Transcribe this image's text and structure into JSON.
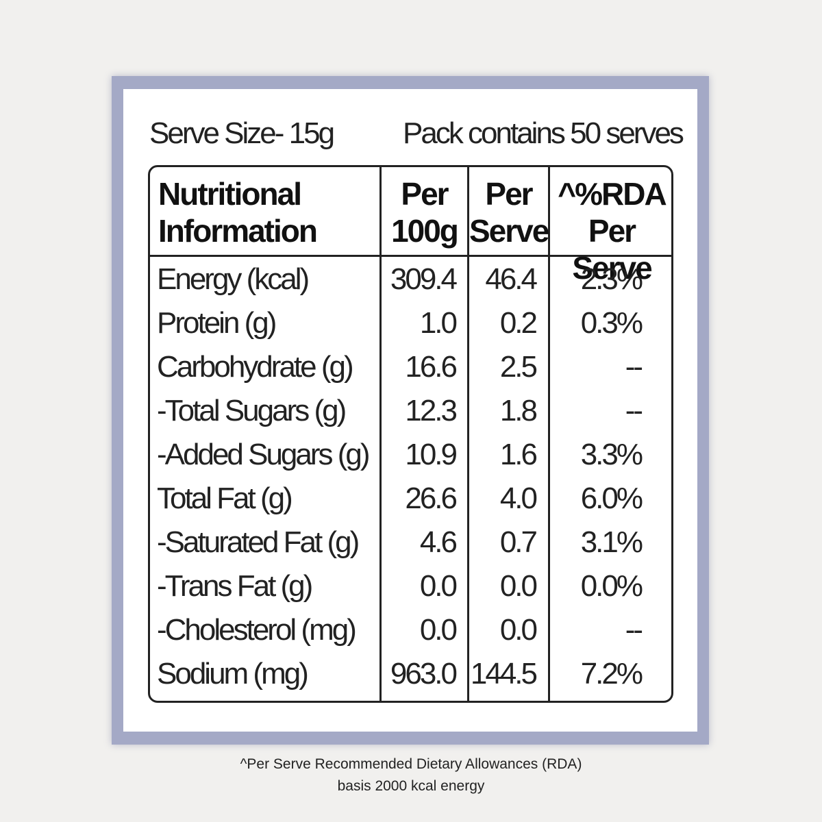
{
  "header": {
    "serve_size": "Serve Size- 15g",
    "pack_contains": "Pack contains 50 serves"
  },
  "table": {
    "columns": {
      "nutrient_line1": "Nutritional",
      "nutrient_line2": "Information",
      "per100_line1": "Per",
      "per100_line2": "100g",
      "perserve_line1": "Per",
      "perserve_line2": "Serve",
      "rda_line1": "^%RDA",
      "rda_line2": "Per Serve"
    },
    "rows": [
      {
        "name": "Energy (kcal)",
        "per100": "309.4",
        "perserve": "46.4",
        "rda": "2.3%"
      },
      {
        "name": "Protein (g)",
        "per100": "1.0",
        "perserve": "0.2",
        "rda": "0.3%"
      },
      {
        "name": "Carbohydrate (g)",
        "per100": "16.6",
        "perserve": "2.5",
        "rda": "--"
      },
      {
        "name": "-Total Sugars (g)",
        "per100": "12.3",
        "perserve": "1.8",
        "rda": "--"
      },
      {
        "name": "-Added Sugars (g)",
        "per100": "10.9",
        "perserve": "1.6",
        "rda": "3.3%"
      },
      {
        "name": "Total Fat (g)",
        "per100": "26.6",
        "perserve": "4.0",
        "rda": "6.0%"
      },
      {
        "name": "-Saturated Fat (g)",
        "per100": "4.6",
        "perserve": "0.7",
        "rda": "3.1%"
      },
      {
        "name": "-Trans Fat (g)",
        "per100": "0.0",
        "perserve": "0.0",
        "rda": "0.0%"
      },
      {
        "name": "-Cholesterol (mg)",
        "per100": "0.0",
        "perserve": "0.0",
        "rda": "--"
      },
      {
        "name": "Sodium (mg)",
        "per100": "963.0",
        "perserve": "144.5",
        "rda": "7.2%"
      }
    ]
  },
  "footnote": {
    "line1": "^Per Serve Recommended Dietary Allowances (RDA)",
    "line2": "basis 2000 kcal energy"
  },
  "colors": {
    "frame": "#a4a9c6",
    "card": "#ffffff",
    "ink": "#222222"
  }
}
